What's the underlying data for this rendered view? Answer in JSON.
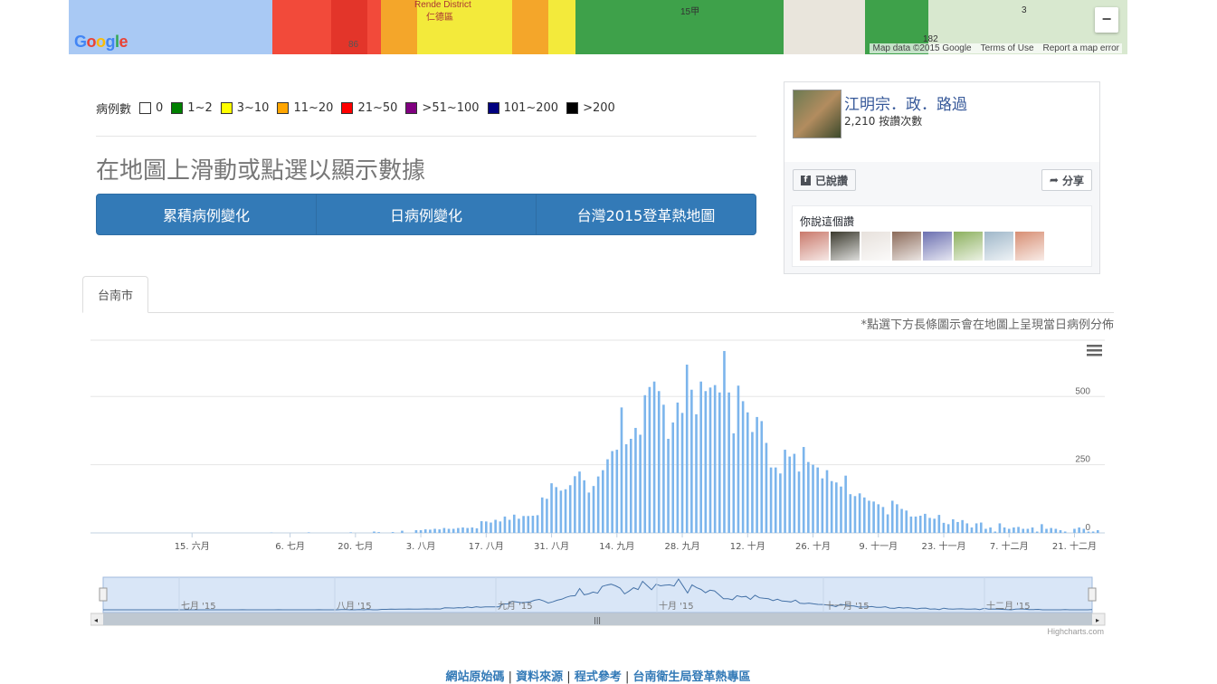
{
  "map": {
    "district_label": "Rende District",
    "district_label_zh": "仁德區",
    "road_label_1": "86",
    "road_label_2": "15甲",
    "road_label_3": "3",
    "road_label_4": "182",
    "google_logo": "Google",
    "credits": [
      "Map data ©2015 Google",
      "Terms of Use",
      "Report a map error"
    ],
    "zoom_out": "−",
    "colors": {
      "sea": "#a9c9f4",
      "red": "#f24a3a",
      "yellow": "#f3ea3b",
      "orange": "#f4a62a",
      "green": "#3ea14a",
      "land": "#e9e5dc"
    }
  },
  "legend": {
    "title": "病例數",
    "items": [
      {
        "label": "0",
        "color": "#ffffff"
      },
      {
        "label": "1~2",
        "color": "#008000"
      },
      {
        "label": "3~10",
        "color": "#ffff00"
      },
      {
        "label": "11~20",
        "color": "#ffa500"
      },
      {
        "label": "21~50",
        "color": "#ff0000"
      },
      {
        "label": ">51~100",
        "color": "#800080"
      },
      {
        "label": "101~200",
        "color": "#000080"
      },
      {
        "label": ">200",
        "color": "#000000"
      }
    ]
  },
  "heading": "在地圖上滑動或點選以顯示數據",
  "buttons": [
    "累積病例變化",
    "日病例變化",
    "台灣2015登革熱地圖"
  ],
  "facebook": {
    "page_name": "江明宗．政．路過",
    "likes_count": "2,210",
    "likes_label": "按讚次數",
    "like_button": "已說讚",
    "share_button": "分享",
    "friends_text": "你說這個讚",
    "avatar_colors": [
      "#c9796b",
      "#3b3a2e",
      "#e7e1dc",
      "#8c6b5a",
      "#6b6fb0",
      "#8cb05e",
      "#9fb7c9",
      "#d78e73"
    ]
  },
  "tab": {
    "label": "台南市"
  },
  "note": "*點選下方長條圖示會在地圖上呈現當日病例分佈",
  "chart_data": {
    "type": "bar",
    "x_type": "date",
    "x_start": "2015-06-01",
    "y_label": "",
    "yticks": [
      0,
      250,
      500
    ],
    "ylim": [
      0,
      700
    ],
    "bar_color": "#7cb5ec",
    "x_tick_labels": [
      {
        "date": "2015-06-15",
        "label": "15. 六月"
      },
      {
        "date": "2015-07-06",
        "label": "6. 七月"
      },
      {
        "date": "2015-07-20",
        "label": "20. 七月"
      },
      {
        "date": "2015-08-03",
        "label": "3. 八月"
      },
      {
        "date": "2015-08-17",
        "label": "17. 八月"
      },
      {
        "date": "2015-08-31",
        "label": "31. 八月"
      },
      {
        "date": "2015-09-14",
        "label": "14. 九月"
      },
      {
        "date": "2015-09-28",
        "label": "28. 九月"
      },
      {
        "date": "2015-10-12",
        "label": "12. 十月"
      },
      {
        "date": "2015-10-26",
        "label": "26. 十月"
      },
      {
        "date": "2015-11-09",
        "label": "9. 十一月"
      },
      {
        "date": "2015-11-23",
        "label": "23. 十一月"
      },
      {
        "date": "2015-12-07",
        "label": "7. 十二月"
      },
      {
        "date": "2015-12-21",
        "label": "21. 十二月"
      }
    ],
    "values": [
      0,
      0,
      0,
      0,
      0,
      0,
      0,
      0,
      0,
      0,
      0,
      0,
      0,
      0,
      0,
      0,
      0,
      0,
      0,
      0,
      0,
      0,
      0,
      0,
      0,
      0,
      0,
      0,
      0,
      0,
      0,
      1,
      0,
      0,
      0,
      0,
      0,
      0,
      0,
      2,
      0,
      0,
      0,
      0,
      0,
      0,
      0,
      0,
      2,
      0,
      0,
      0,
      0,
      5,
      3,
      0,
      0,
      3,
      0,
      8,
      0,
      0,
      10,
      10,
      13,
      12,
      15,
      13,
      18,
      15,
      15,
      18,
      20,
      18,
      20,
      17,
      43,
      42,
      38,
      48,
      42,
      60,
      48,
      67,
      52,
      62,
      62,
      63,
      65,
      130,
      125,
      182,
      168,
      155,
      160,
      175,
      208,
      225,
      193,
      148,
      172,
      207,
      230,
      270,
      300,
      305,
      460,
      325,
      345,
      385,
      360,
      505,
      535,
      555,
      520,
      470,
      345,
      405,
      478,
      440,
      617,
      525,
      435,
      555,
      520,
      533,
      542,
      515,
      667,
      515,
      365,
      540,
      483,
      442,
      370,
      425,
      410,
      330,
      240,
      240,
      218,
      305,
      280,
      290,
      225,
      315,
      260,
      250,
      240,
      200,
      230,
      190,
      185,
      170,
      210,
      142,
      135,
      145,
      130,
      118,
      115,
      105,
      95,
      68,
      118,
      105,
      88,
      82,
      60,
      60,
      63,
      70,
      55,
      52,
      66,
      37,
      32,
      50,
      40,
      47,
      35,
      20,
      35,
      38,
      15,
      20,
      5,
      35,
      20,
      15,
      20,
      22,
      15,
      15,
      20,
      5,
      32,
      15,
      18,
      15,
      10,
      5,
      0,
      15,
      20,
      15,
      5,
      5,
      10,
      0,
      0,
      0,
      0,
      0,
      5,
      0,
      0,
      0,
      0,
      0,
      5
    ],
    "navigator_labels": [
      "七月 '15",
      "八月 '15",
      "九月 '15",
      "十月 '15",
      "十一月 '15",
      "十二月 '15"
    ],
    "credits": "Highcharts.com",
    "menu_icon": "hamburger-menu-icon"
  },
  "footer": {
    "links": [
      "網站原始碼",
      "資料來源",
      "程式參考",
      "台南衛生局登革熱專區"
    ],
    "separator": "|"
  }
}
